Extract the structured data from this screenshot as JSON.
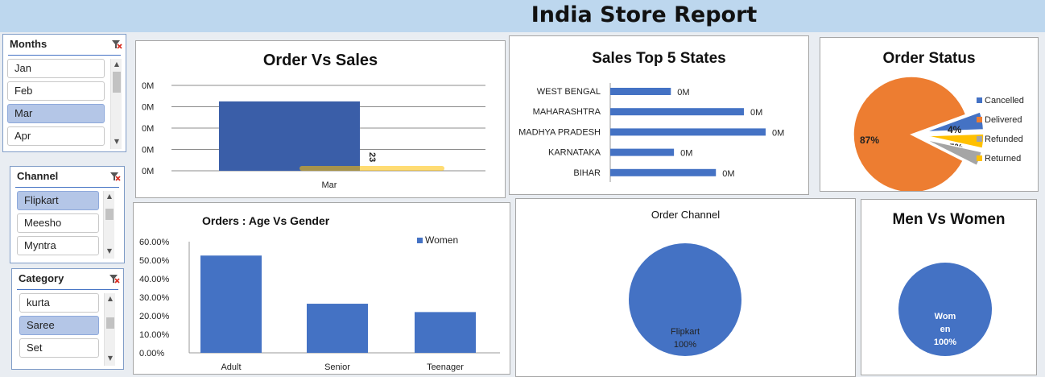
{
  "report_title": "India Store Report",
  "slicers": {
    "months": {
      "title": "Months",
      "items": [
        {
          "label": "Jan",
          "selected": false
        },
        {
          "label": "Feb",
          "selected": false
        },
        {
          "label": "Mar",
          "selected": true
        },
        {
          "label": "Apr",
          "selected": false
        }
      ]
    },
    "channel": {
      "title": "Channel",
      "items": [
        {
          "label": "Flipkart",
          "selected": true
        },
        {
          "label": "Meesho",
          "selected": false
        },
        {
          "label": "Myntra",
          "selected": false
        }
      ]
    },
    "category": {
      "title": "Category",
      "items": [
        {
          "label": "kurta",
          "selected": false
        },
        {
          "label": "Saree",
          "selected": true
        },
        {
          "label": "Set",
          "selected": false
        }
      ]
    }
  },
  "colors": {
    "blue": "#4472c4",
    "dark_blue": "#3a5ea8",
    "orange": "#ed7d31",
    "gray": "#a5a5a5",
    "gold": "#ffc000",
    "banner": "#bdd7ee"
  },
  "icons": {
    "clear_filter": "clear-filter-icon",
    "scroll_up": "chevron-up-icon",
    "scroll_down": "chevron-down-icon"
  },
  "chart_data": [
    {
      "id": "order_vs_sales",
      "type": "bar",
      "title": "Order Vs Sales",
      "categories": [
        "Mar"
      ],
      "y_tick_labels": [
        "0M",
        "0M",
        "0M",
        "0M",
        "0M"
      ],
      "series": [
        {
          "values": [
            1
          ]
        }
      ],
      "secondary_label": "23",
      "grid": true
    },
    {
      "id": "sales_top5_states",
      "type": "bar",
      "orientation": "horizontal",
      "title": "Sales Top 5 States",
      "categories": [
        "WEST BENGAL",
        "MAHARASHTRA",
        "MADHYA PRADESH",
        "KARNATAKA",
        "BIHAR"
      ],
      "values": [
        0.39,
        0.86,
        1.0,
        0.41,
        0.68
      ],
      "data_labels": [
        "0M",
        "0M",
        "0M",
        "0M",
        "0M"
      ]
    },
    {
      "id": "order_status",
      "type": "pie",
      "title": "Order Status",
      "slices": [
        {
          "name": "Delivered",
          "value": 87,
          "label": "87%",
          "color": "#ed7d31"
        },
        {
          "name": "Cancelled",
          "value": 5,
          "label": "5%",
          "color": "#4472c4"
        },
        {
          "name": "Refunded",
          "value": 4,
          "label": "4%",
          "color": "#a5a5a5"
        },
        {
          "name": "Returned",
          "value": 4,
          "label": "4%",
          "color": "#ffc000"
        }
      ],
      "legend": [
        "Cancelled",
        "Delivered",
        "Refunded",
        "Returned"
      ],
      "legend_position": "right"
    },
    {
      "id": "age_vs_gender",
      "type": "bar",
      "title": "Orders : Age Vs Gender",
      "categories": [
        "Adult",
        "Senior",
        "Teenager"
      ],
      "series": [
        {
          "name": "Women",
          "values": [
            52.5,
            26.5,
            22.0
          ]
        }
      ],
      "y_tick_labels": [
        "0.00%",
        "10.00%",
        "20.00%",
        "30.00%",
        "40.00%",
        "50.00%",
        "60.00%"
      ],
      "ylim": [
        0,
        60
      ],
      "legend_position": "top-right"
    },
    {
      "id": "order_channel",
      "type": "pie",
      "title": "Order Channel",
      "slices": [
        {
          "name": "Flipkart",
          "value": 100,
          "label": "100%"
        }
      ]
    },
    {
      "id": "men_vs_women",
      "type": "pie",
      "title": "Men Vs Women",
      "slices": [
        {
          "name": "Wom\nen",
          "value": 100,
          "label": "100%"
        }
      ]
    }
  ]
}
